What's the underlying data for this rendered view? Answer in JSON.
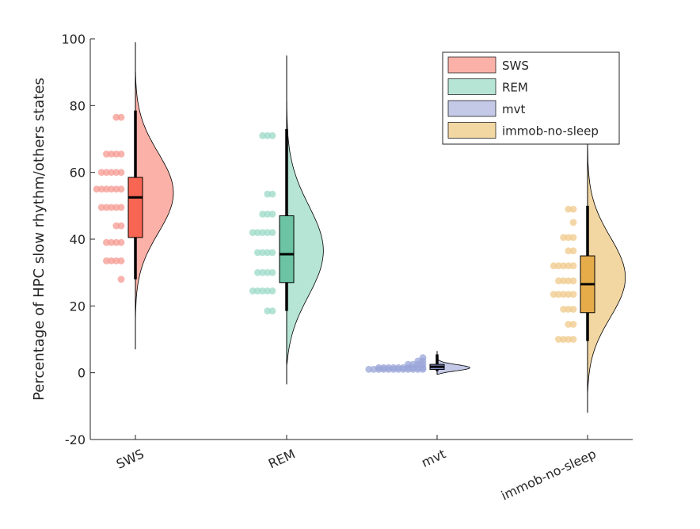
{
  "chart_data": {
    "type": "raincloud",
    "title": "",
    "xlabel": "",
    "ylabel": "Percentage of HPC slow rhythm/others states",
    "ylim": [
      -20,
      100
    ],
    "yticks": [
      -20,
      0,
      20,
      40,
      60,
      80,
      100
    ],
    "ytick_labels": [
      "-20",
      "0",
      "20",
      "40",
      "60",
      "80",
      "100"
    ],
    "categories": [
      "SWS",
      "REM",
      "mvt",
      "immob-no-sleep"
    ],
    "legend": {
      "placement": "top-right",
      "entries": [
        "SWS",
        "REM",
        "mvt",
        "immob-no-sleep"
      ]
    },
    "colors": {
      "SWS": {
        "cloud": "#fcb1a8",
        "box": "#f86553",
        "dots": "#f59a92"
      },
      "REM": {
        "cloud": "#b6e5d5",
        "box": "#6cc4a4",
        "dots": "#9bdac7"
      },
      "mvt": {
        "cloud": "#c3c9e7",
        "box": "#8c98cc",
        "dots": "#9aa6d8"
      },
      "immob-no-sleep": {
        "cloud": "#f3d7a3",
        "box": "#e6ac4a",
        "dots": "#f0c98b"
      }
    },
    "series": [
      {
        "name": "SWS",
        "box": {
          "whisker_low": 28,
          "q1": 40.5,
          "median": 52.5,
          "q3": 58.5,
          "whisker_high": 78.5
        },
        "density_range": [
          15,
          91
        ],
        "density_peak_y": 54,
        "vline_range": [
          7,
          99
        ],
        "points": [
          [
            76.5,
            2
          ],
          [
            65.5,
            4
          ],
          [
            60,
            5
          ],
          [
            55,
            6
          ],
          [
            49.5,
            5
          ],
          [
            44,
            2
          ],
          [
            39,
            4
          ],
          [
            33.5,
            4
          ],
          [
            28,
            1
          ]
        ]
      },
      {
        "name": "REM",
        "box": {
          "whisker_low": 18.5,
          "q1": 27,
          "median": 35.5,
          "q3": 47,
          "whisker_high": 73
        },
        "density_range": [
          2,
          88
        ],
        "density_peak_y": 35,
        "vline_range": [
          -3.5,
          95
        ],
        "points": [
          [
            71,
            3
          ],
          [
            53.5,
            2
          ],
          [
            47.5,
            3
          ],
          [
            42,
            5
          ],
          [
            36,
            4
          ],
          [
            30,
            4
          ],
          [
            24.5,
            5
          ],
          [
            18.5,
            2
          ]
        ]
      },
      {
        "name": "mvt",
        "box": {
          "whisker_low": 0.5,
          "q1": 1,
          "median": 1.8,
          "q3": 2.5,
          "whisker_high": 5.5
        },
        "density_range": [
          -0.5,
          5.5
        ],
        "density_peak_y": 1.3,
        "vline_range": [
          -0.5,
          6.5
        ],
        "points": [
          [
            4.5,
            1
          ],
          [
            3.5,
            2
          ],
          [
            2.5,
            4
          ],
          [
            1.5,
            10
          ],
          [
            1,
            12
          ]
        ]
      },
      {
        "name": "immob-no-sleep",
        "box": {
          "whisker_low": 9.5,
          "q1": 18,
          "median": 26.5,
          "q3": 35,
          "whisker_high": 50
        },
        "density_range": [
          -6.5,
          70
        ],
        "density_peak_y": 28,
        "vline_range": [
          -12,
          73
        ],
        "points": [
          [
            49,
            2
          ],
          [
            45,
            1
          ],
          [
            40.5,
            3
          ],
          [
            36.5,
            2
          ],
          [
            32,
            5
          ],
          [
            27.5,
            4
          ],
          [
            23.5,
            5
          ],
          [
            19,
            3
          ],
          [
            14.5,
            2
          ],
          [
            10,
            4
          ]
        ]
      }
    ]
  }
}
